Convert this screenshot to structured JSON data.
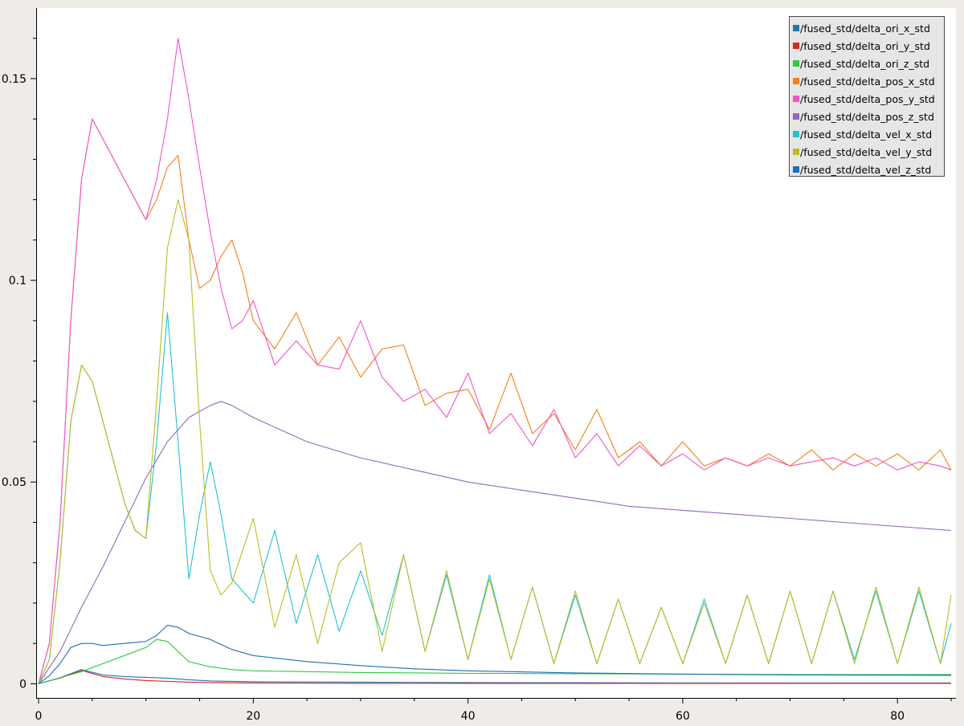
{
  "chart_data": {
    "type": "line",
    "title": "",
    "xlabel": "",
    "ylabel": "",
    "xlim": [
      0,
      85
    ],
    "ylim": [
      -0.0035,
      0.1675
    ],
    "x_ticks": [
      "0",
      "20",
      "40",
      "60",
      "80"
    ],
    "y_ticks": [
      "0",
      "0.05",
      "0.1",
      "0.15"
    ],
    "grid": false,
    "legend_position": "top-right",
    "series": [
      {
        "name": "/fused_std/delta_ori_x_std",
        "color": "#1f77b4",
        "x": [
          0,
          2,
          4,
          6,
          8,
          10,
          12,
          14,
          16,
          20,
          30,
          40,
          60,
          85
        ],
        "y": [
          0.0,
          0.0015,
          0.0035,
          0.0022,
          0.0018,
          0.0016,
          0.0014,
          0.001,
          0.0007,
          0.0005,
          0.0004,
          0.0003,
          0.0002,
          0.0002
        ]
      },
      {
        "name": "/fused_std/delta_ori_y_std",
        "color": "#d62728",
        "x": [
          0,
          2,
          4,
          6,
          8,
          10,
          12,
          14,
          16,
          20,
          30,
          40,
          60,
          85
        ],
        "y": [
          0.0,
          0.0014,
          0.0033,
          0.0018,
          0.0012,
          0.0008,
          0.0006,
          0.0004,
          0.0003,
          0.0002,
          0.0001,
          0.0001,
          0.0001,
          0.0001
        ]
      },
      {
        "name": "/fused_std/delta_ori_z_std",
        "color": "#2ecc40",
        "x": [
          0,
          2,
          4,
          6,
          8,
          10,
          11,
          12,
          13,
          14,
          16,
          18,
          20,
          25,
          30,
          40,
          50,
          60,
          70,
          85
        ],
        "y": [
          0.0,
          0.0015,
          0.003,
          0.005,
          0.007,
          0.009,
          0.011,
          0.0105,
          0.008,
          0.0055,
          0.0042,
          0.0035,
          0.0032,
          0.003,
          0.0028,
          0.0026,
          0.0025,
          0.0024,
          0.0023,
          0.0023
        ]
      },
      {
        "name": "/fused_std/delta_pos_x_std",
        "color": "#f57f17",
        "x": [
          0,
          1,
          2,
          3,
          4,
          5,
          6,
          7,
          8,
          9,
          10,
          11,
          12,
          13,
          14,
          15,
          16,
          17,
          18,
          19,
          20,
          22,
          24,
          26,
          28,
          30,
          32,
          34,
          36,
          38,
          40,
          42,
          44,
          46,
          48,
          50,
          52,
          54,
          56,
          58,
          60,
          62,
          64,
          66,
          68,
          70,
          72,
          74,
          76,
          78,
          80,
          82,
          84,
          85
        ],
        "y": [
          0.0,
          0.01,
          0.04,
          0.09,
          0.125,
          0.14,
          0.135,
          0.13,
          0.125,
          0.12,
          0.115,
          0.12,
          0.128,
          0.131,
          0.11,
          0.098,
          0.1,
          0.106,
          0.11,
          0.102,
          0.09,
          0.083,
          0.092,
          0.079,
          0.086,
          0.076,
          0.083,
          0.084,
          0.069,
          0.072,
          0.073,
          0.063,
          0.077,
          0.062,
          0.067,
          0.058,
          0.068,
          0.056,
          0.06,
          0.054,
          0.06,
          0.054,
          0.056,
          0.054,
          0.057,
          0.054,
          0.058,
          0.053,
          0.057,
          0.054,
          0.057,
          0.053,
          0.058,
          0.053
        ]
      },
      {
        "name": "/fused_std/delta_pos_y_std",
        "color": "#ee55cc",
        "x": [
          0,
          1,
          2,
          3,
          4,
          5,
          6,
          7,
          8,
          9,
          10,
          11,
          12,
          13,
          14,
          15,
          16,
          17,
          18,
          19,
          20,
          22,
          24,
          26,
          28,
          30,
          32,
          34,
          36,
          38,
          40,
          42,
          44,
          46,
          48,
          50,
          52,
          54,
          56,
          58,
          60,
          62,
          64,
          66,
          68,
          70,
          72,
          74,
          76,
          78,
          80,
          82,
          84,
          85
        ],
        "y": [
          0.0,
          0.01,
          0.04,
          0.09,
          0.125,
          0.14,
          0.135,
          0.13,
          0.125,
          0.12,
          0.115,
          0.125,
          0.14,
          0.16,
          0.145,
          0.128,
          0.112,
          0.098,
          0.088,
          0.09,
          0.095,
          0.079,
          0.085,
          0.079,
          0.078,
          0.09,
          0.076,
          0.07,
          0.073,
          0.066,
          0.077,
          0.062,
          0.067,
          0.059,
          0.068,
          0.056,
          0.062,
          0.054,
          0.059,
          0.054,
          0.057,
          0.053,
          0.056,
          0.054,
          0.056,
          0.054,
          0.055,
          0.056,
          0.054,
          0.056,
          0.053,
          0.055,
          0.054,
          0.053
        ]
      },
      {
        "name": "/fused_std/delta_pos_z_std",
        "color": "#9467bd",
        "x": [
          0,
          2,
          4,
          6,
          8,
          10,
          12,
          14,
          16,
          17,
          18,
          20,
          25,
          30,
          35,
          40,
          45,
          50,
          55,
          60,
          65,
          70,
          75,
          80,
          85
        ],
        "y": [
          0.0,
          0.008,
          0.019,
          0.029,
          0.04,
          0.051,
          0.06,
          0.066,
          0.069,
          0.07,
          0.069,
          0.066,
          0.06,
          0.056,
          0.053,
          0.05,
          0.048,
          0.046,
          0.044,
          0.043,
          0.042,
          0.041,
          0.04,
          0.039,
          0.038
        ]
      },
      {
        "name": "/fused_std/delta_vel_x_std",
        "color": "#22c3cf",
        "x": [
          0,
          1,
          2,
          3,
          4,
          5,
          6,
          7,
          8,
          9,
          10,
          11,
          12,
          13,
          14,
          15,
          16,
          17,
          18,
          20,
          22,
          24,
          26,
          28,
          30,
          32,
          34,
          36,
          38,
          40,
          42,
          44,
          46,
          48,
          50,
          52,
          54,
          56,
          58,
          60,
          62,
          64,
          66,
          68,
          70,
          72,
          74,
          76,
          78,
          80,
          82,
          84,
          85
        ],
        "y": [
          0.0,
          0.006,
          0.03,
          0.065,
          0.079,
          0.075,
          0.065,
          0.055,
          0.045,
          0.038,
          0.036,
          0.06,
          0.092,
          0.06,
          0.026,
          0.042,
          0.055,
          0.042,
          0.026,
          0.02,
          0.038,
          0.015,
          0.032,
          0.013,
          0.028,
          0.012,
          0.032,
          0.008,
          0.027,
          0.006,
          0.027,
          0.006,
          0.024,
          0.005,
          0.022,
          0.005,
          0.021,
          0.005,
          0.019,
          0.005,
          0.021,
          0.005,
          0.022,
          0.005,
          0.023,
          0.005,
          0.023,
          0.006,
          0.023,
          0.005,
          0.023,
          0.005,
          0.015
        ]
      },
      {
        "name": "/fused_std/delta_vel_y_std",
        "color": "#bcbd22",
        "x": [
          0,
          1,
          2,
          3,
          4,
          5,
          6,
          7,
          8,
          9,
          10,
          11,
          12,
          13,
          14,
          15,
          16,
          17,
          18,
          20,
          22,
          24,
          26,
          28,
          30,
          32,
          34,
          36,
          38,
          40,
          42,
          44,
          46,
          48,
          50,
          52,
          54,
          56,
          58,
          60,
          62,
          64,
          66,
          68,
          70,
          72,
          74,
          76,
          78,
          80,
          82,
          84,
          85
        ],
        "y": [
          0.0,
          0.006,
          0.03,
          0.065,
          0.079,
          0.075,
          0.065,
          0.055,
          0.045,
          0.038,
          0.036,
          0.07,
          0.108,
          0.12,
          0.11,
          0.065,
          0.028,
          0.022,
          0.025,
          0.041,
          0.014,
          0.032,
          0.01,
          0.03,
          0.035,
          0.008,
          0.032,
          0.008,
          0.028,
          0.006,
          0.026,
          0.006,
          0.024,
          0.005,
          0.023,
          0.005,
          0.021,
          0.005,
          0.019,
          0.005,
          0.02,
          0.005,
          0.022,
          0.005,
          0.023,
          0.005,
          0.023,
          0.005,
          0.024,
          0.005,
          0.024,
          0.005,
          0.022
        ]
      },
      {
        "name": "/fused_std/delta_vel_z_std",
        "color": "#1f6fb4",
        "x": [
          0,
          1,
          2,
          3,
          4,
          5,
          6,
          8,
          10,
          11,
          12,
          13,
          14,
          16,
          18,
          20,
          25,
          30,
          35,
          40,
          50,
          60,
          70,
          85
        ],
        "y": [
          0.0,
          0.002,
          0.005,
          0.009,
          0.01,
          0.01,
          0.0095,
          0.01,
          0.0105,
          0.012,
          0.0145,
          0.014,
          0.0125,
          0.011,
          0.0085,
          0.007,
          0.0055,
          0.0045,
          0.0037,
          0.0032,
          0.0027,
          0.0024,
          0.0022,
          0.0021
        ]
      }
    ]
  }
}
